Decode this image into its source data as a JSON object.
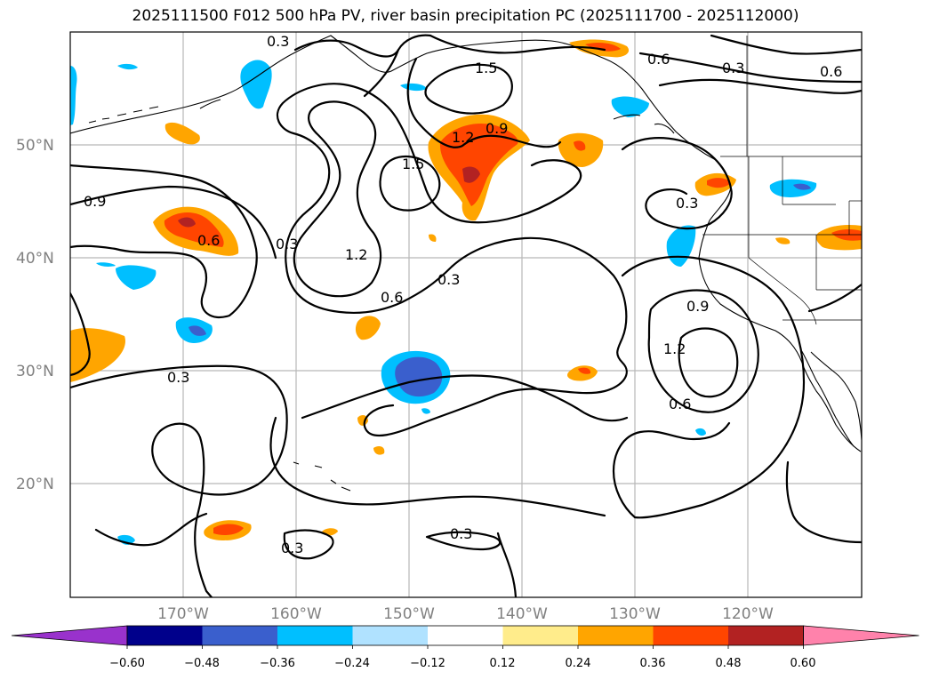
{
  "title": "2025111500 F012 500 hPa PV, river basin precipitation PC (2025111700 - 2025112000)",
  "map": {
    "lat_labels": [
      "50°N",
      "40°N",
      "30°N",
      "20°N"
    ],
    "lon_labels": [
      "170°W",
      "160°W",
      "150°W",
      "140°W",
      "130°W",
      "120°W"
    ],
    "contour_labels": [
      "1.5",
      "1.5",
      "1.2",
      "1.2",
      "1.2",
      "0.9",
      "0.9",
      "0.9",
      "0.6",
      "0.6",
      "0.6",
      "0.6",
      "0.6",
      "0.3",
      "0.3",
      "0.3",
      "0.3",
      "0.3",
      "0.3",
      "0.3",
      "0.3"
    ]
  },
  "colorbar": {
    "ticks": [
      "−0.60",
      "−0.48",
      "−0.36",
      "−0.24",
      "−0.12",
      "0.12",
      "0.24",
      "0.36",
      "0.48",
      "0.60"
    ],
    "colors": [
      "#9932cc",
      "#00008b",
      "#3a5fcd",
      "#00bfff",
      "#b0e2ff",
      "#ffffff",
      "#ffec8b",
      "#ffa500",
      "#ff4500",
      "#b22222",
      "#ff82ab"
    ]
  }
}
